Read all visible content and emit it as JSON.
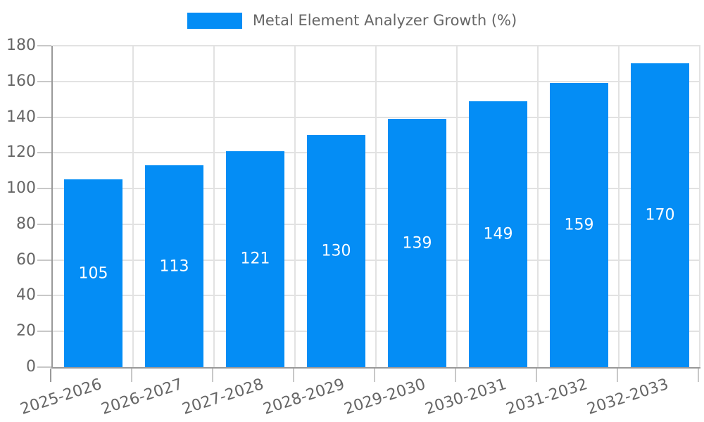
{
  "legend": {
    "label": "Metal Element Analyzer Growth (%)",
    "swatch_color": "#048df5"
  },
  "chart_data": {
    "type": "bar",
    "title": "",
    "xlabel": "",
    "ylabel": "",
    "categories": [
      "2025-2026",
      "2026-2027",
      "2027-2028",
      "2028-2029",
      "2029-2030",
      "2030-2031",
      "2031-2032",
      "2032-2033"
    ],
    "values": [
      105,
      113,
      121,
      130,
      139,
      149,
      159,
      170
    ],
    "value_labels": [
      "105",
      "113",
      "121",
      "130",
      "139",
      "149",
      "159",
      "170"
    ],
    "series": [
      {
        "name": "Metal Element Analyzer Growth (%)",
        "values": [
          105,
          113,
          121,
          130,
          139,
          149,
          159,
          170
        ]
      }
    ],
    "ylim": [
      0,
      180
    ],
    "ytick_step": 20,
    "yticks": [
      "0",
      "20",
      "40",
      "60",
      "80",
      "100",
      "120",
      "140",
      "160",
      "180"
    ],
    "grid": true,
    "legend_position": "top-center",
    "bar_color": "#048df5",
    "value_label_color": "#ffffff",
    "axis_line_color": "#999999",
    "grid_line_color": "#e2e2e2",
    "tick_mark_color": "#c8c8c8",
    "tick_text_color": "#666666"
  }
}
